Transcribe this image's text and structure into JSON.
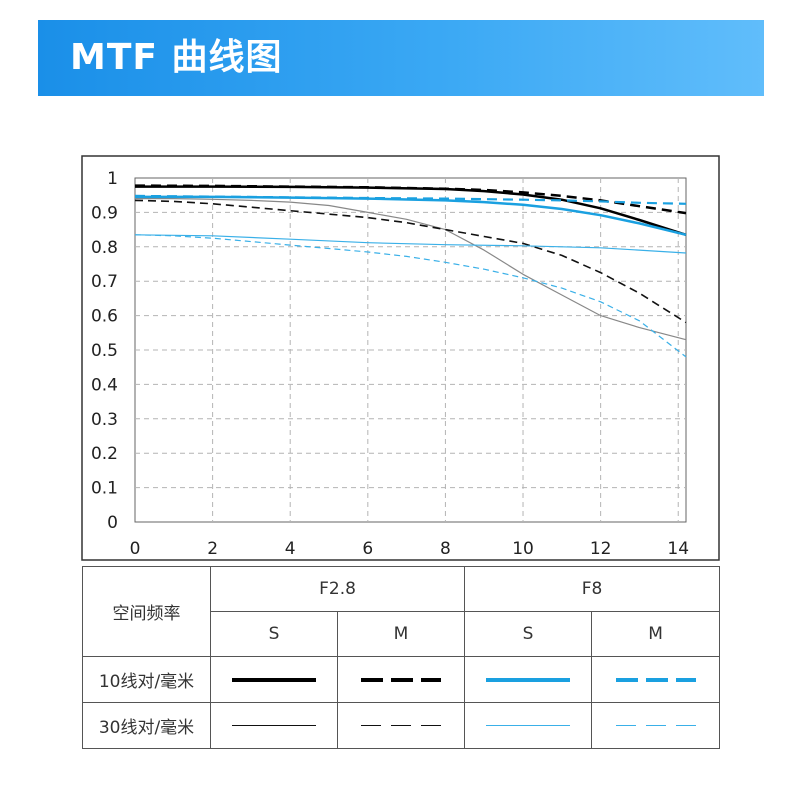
{
  "header": {
    "title": "MTF 曲线图"
  },
  "chart_data": {
    "type": "line",
    "x_ticks": [
      0,
      2,
      4,
      6,
      8,
      10,
      12,
      14
    ],
    "y_ticks": [
      0,
      0.1,
      0.2,
      0.3,
      0.4,
      0.5,
      0.6,
      0.7,
      0.8,
      0.9,
      1
    ],
    "y_tick_labels": [
      "0",
      "0.1",
      "0.2",
      "0.3",
      "0.4",
      "0.5",
      "0.6",
      "0.7",
      "0.8",
      "0.9",
      "1"
    ],
    "xlim": [
      0,
      14.2
    ],
    "ylim": [
      0,
      1
    ],
    "grid": true,
    "series": [
      {
        "aperture": "F2.8",
        "freq": "10",
        "orientation": "S",
        "color": "#000000",
        "width": 2.5,
        "dash": "",
        "x": [
          0,
          2,
          4,
          6,
          8,
          9,
          10,
          11,
          12,
          13,
          14.2
        ],
        "y": [
          0.975,
          0.975,
          0.974,
          0.972,
          0.968,
          0.962,
          0.952,
          0.937,
          0.912,
          0.878,
          0.835
        ]
      },
      {
        "aperture": "F2.8",
        "freq": "10",
        "orientation": "M",
        "color": "#000000",
        "width": 2.5,
        "dash": "10,6",
        "x": [
          0,
          2,
          4,
          6,
          8,
          9,
          10,
          11,
          12,
          13,
          14.2
        ],
        "y": [
          0.978,
          0.977,
          0.975,
          0.973,
          0.969,
          0.965,
          0.958,
          0.948,
          0.935,
          0.918,
          0.898
        ]
      },
      {
        "aperture": "F2.8",
        "freq": "30",
        "orientation": "S",
        "color": "#888888",
        "width": 1.2,
        "dash": "",
        "x": [
          0,
          1,
          2,
          3,
          4,
          5,
          6,
          7,
          8,
          9,
          10,
          11,
          12,
          13,
          14.2
        ],
        "y": [
          0.94,
          0.94,
          0.938,
          0.935,
          0.93,
          0.92,
          0.9,
          0.88,
          0.85,
          0.79,
          0.72,
          0.66,
          0.6,
          0.565,
          0.53
        ]
      },
      {
        "aperture": "F2.8",
        "freq": "30",
        "orientation": "M",
        "color": "#111111",
        "width": 1.6,
        "dash": "8,5",
        "x": [
          0,
          1,
          2,
          3,
          4,
          5,
          6,
          7,
          8,
          9,
          10,
          11,
          12,
          13,
          14.2
        ],
        "y": [
          0.935,
          0.932,
          0.925,
          0.915,
          0.905,
          0.895,
          0.885,
          0.87,
          0.85,
          0.83,
          0.81,
          0.775,
          0.725,
          0.665,
          0.58
        ]
      },
      {
        "aperture": "F8",
        "freq": "10",
        "orientation": "S",
        "color": "#1aa0e0",
        "width": 2.5,
        "dash": "",
        "x": [
          0,
          2,
          4,
          6,
          8,
          9,
          10,
          11,
          12,
          13,
          14.2
        ],
        "y": [
          0.945,
          0.945,
          0.943,
          0.94,
          0.935,
          0.93,
          0.922,
          0.91,
          0.892,
          0.868,
          0.835
        ]
      },
      {
        "aperture": "F8",
        "freq": "10",
        "orientation": "M",
        "color": "#1aa0e0",
        "width": 2.2,
        "dash": "10,6",
        "x": [
          0,
          2,
          4,
          6,
          8,
          10,
          11,
          12,
          13,
          14.2
        ],
        "y": [
          0.948,
          0.946,
          0.944,
          0.942,
          0.94,
          0.937,
          0.935,
          0.932,
          0.928,
          0.925
        ]
      },
      {
        "aperture": "F8",
        "freq": "30",
        "orientation": "S",
        "color": "#3ab0e8",
        "width": 1.2,
        "dash": "",
        "x": [
          0,
          2,
          4,
          6,
          8,
          10,
          12,
          14.2
        ],
        "y": [
          0.835,
          0.832,
          0.822,
          0.812,
          0.806,
          0.803,
          0.797,
          0.782
        ]
      },
      {
        "aperture": "F8",
        "freq": "30",
        "orientation": "M",
        "color": "#3ab0e8",
        "width": 1.2,
        "dash": "6,4",
        "x": [
          0,
          1,
          2,
          3,
          4,
          5,
          6,
          7,
          8,
          9,
          10,
          11,
          12,
          13,
          14.2
        ],
        "y": [
          0.835,
          0.832,
          0.825,
          0.815,
          0.805,
          0.795,
          0.785,
          0.772,
          0.755,
          0.735,
          0.71,
          0.68,
          0.64,
          0.585,
          0.48
        ]
      }
    ]
  },
  "legend": {
    "header_label": "空间频率",
    "aperture_1": "F2.8",
    "aperture_2": "F8",
    "col_s": "S",
    "col_m": "M",
    "row_10": "10线对/毫米",
    "row_30": "30线对/毫米"
  }
}
